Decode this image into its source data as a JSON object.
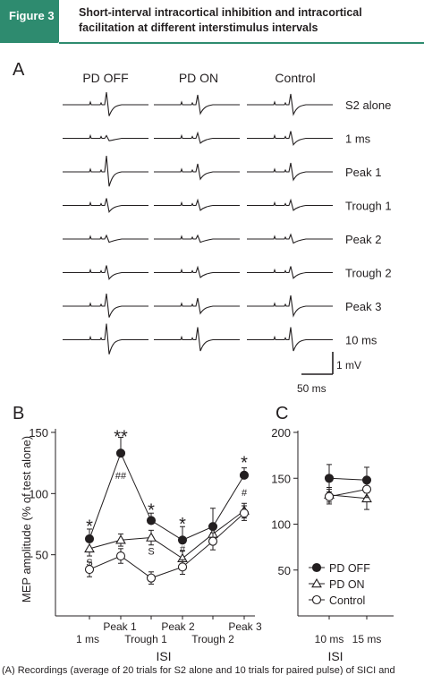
{
  "figure": {
    "badge": "Figure 3",
    "title": "Short-interval intracortical inhibition and intracortical facilitation at different interstimulus intervals"
  },
  "panel_a": {
    "label": "A",
    "columns": [
      "PD OFF",
      "PD ON",
      "Control"
    ],
    "rows": [
      "S2 alone",
      "1 ms",
      "Peak 1",
      "Trough 1",
      "Peak 2",
      "Trough 2",
      "Peak 3",
      "10 ms"
    ],
    "scale_y": "1 mV",
    "scale_x": "50 ms"
  },
  "chart_data": [
    {
      "panel": "B",
      "type": "line",
      "categories": [
        "1 ms",
        "Peak 1",
        "Trough 1",
        "Peak 2",
        "Trough 2",
        "Peak 3"
      ],
      "ylabel": "MEP amplitude (% of test alone)",
      "xlabel": "ISI",
      "ylim": [
        0,
        150
      ],
      "yticks": [
        50,
        100,
        150
      ],
      "series": [
        {
          "name": "PD OFF",
          "marker": "filled-circle",
          "values": [
            63,
            133,
            78,
            62,
            73,
            115
          ],
          "errors": [
            8,
            13,
            6,
            11,
            15,
            6
          ]
        },
        {
          "name": "PD ON",
          "marker": "open-triangle",
          "values": [
            55,
            62,
            64,
            47,
            67,
            86
          ],
          "errors": [
            6,
            5,
            6,
            6,
            7,
            6
          ]
        },
        {
          "name": "Control",
          "marker": "open-circle",
          "values": [
            38,
            49,
            31,
            40,
            61,
            84
          ],
          "errors": [
            6,
            6,
            5,
            6,
            7,
            6
          ]
        }
      ],
      "annotations": [
        {
          "cat": 0,
          "text": "*",
          "y": 75
        },
        {
          "cat": 1,
          "text": "**",
          "y": 148
        },
        {
          "cat": 2,
          "text": "*",
          "y": 88
        },
        {
          "cat": 3,
          "text": "*",
          "y": 77
        },
        {
          "cat": 5,
          "text": "*",
          "y": 127
        },
        {
          "cat": 1,
          "text": "##",
          "y": 115
        },
        {
          "cat": 3,
          "text": "#",
          "y": 55
        },
        {
          "cat": 5,
          "text": "#",
          "y": 101
        },
        {
          "cat": 0,
          "text": "S",
          "y": 44
        },
        {
          "cat": 2,
          "text": "S",
          "y": 53
        }
      ]
    },
    {
      "panel": "C",
      "type": "line",
      "categories": [
        "10 ms",
        "15 ms"
      ],
      "xlabel": "ISI",
      "ylim": [
        0,
        200
      ],
      "yticks": [
        50,
        100,
        150,
        200
      ],
      "series": [
        {
          "name": "PD OFF",
          "marker": "filled-circle",
          "values": [
            150,
            148
          ],
          "errors": [
            15,
            14
          ]
        },
        {
          "name": "PD ON",
          "marker": "open-triangle",
          "values": [
            132,
            128
          ],
          "errors": [
            8,
            12
          ]
        },
        {
          "name": "Control",
          "marker": "open-circle",
          "values": [
            130,
            138
          ],
          "errors": [
            8,
            9
          ]
        }
      ],
      "legend_position": "lower-center"
    }
  ],
  "panel_b": {
    "label": "B"
  },
  "panel_c": {
    "label": "C"
  },
  "caption_fragment": "(A) Recordings (average of 20 trials for S2 alone and 10 trials for paired pulse) of SICI and"
}
